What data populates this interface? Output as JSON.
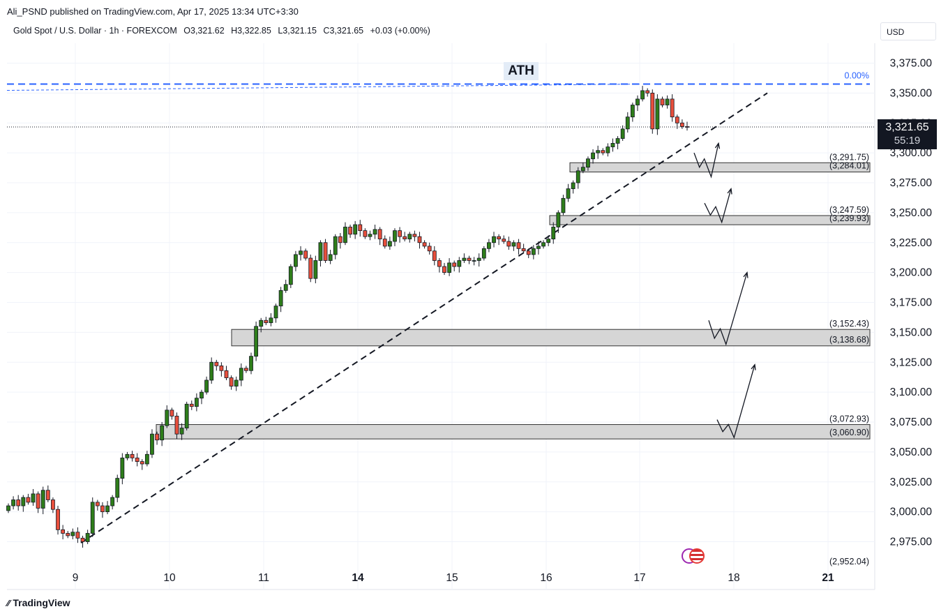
{
  "publisher": "Ali_PSND published on TradingView.com, Apr 17, 2025 13:34 UTC+3:30",
  "symbol": {
    "name": "Gold Spot / U.S. Dollar · 1h · FOREXCOM",
    "open": "O3,321.62",
    "high": "H3,322.85",
    "low": "L3,321.15",
    "close": "C3,321.65",
    "change": "+0.03 (+0.00%)"
  },
  "currency": "USD",
  "footer_brand": "TradingView",
  "last_price": "3,321.65",
  "countdown": "55:19",
  "colors": {
    "up": "#2e7d1a",
    "down": "#e84f3c",
    "up_fill": "#b7d6a0",
    "down_fill": "#f2a99b",
    "ath_line": "#2962ff",
    "zone": "#d6d6d6"
  },
  "chart_data": {
    "type": "candlestick",
    "instrument": "XAU/USD",
    "timeframe": "1h",
    "ylim": [
      2952.04,
      3375
    ],
    "y_ticks": [
      "3,375.00",
      "3,350.00",
      "3,325.00",
      "3,300.00",
      "3,275.00",
      "3,250.00",
      "3,225.00",
      "3,200.00",
      "3,175.00",
      "3,150.00",
      "3,125.00",
      "3,100.00",
      "3,075.00",
      "3,050.00",
      "3,025.00",
      "3,000.00",
      "2,975.00"
    ],
    "y_tick_values": [
      3375,
      3350,
      3325,
      3300,
      3275,
      3250,
      3225,
      3200,
      3175,
      3150,
      3125,
      3100,
      3075,
      3050,
      3025,
      3000,
      2975
    ],
    "x_ticks": [
      {
        "label": "9",
        "bold": false
      },
      {
        "label": "10",
        "bold": false
      },
      {
        "label": "11",
        "bold": false
      },
      {
        "label": "14",
        "bold": true
      },
      {
        "label": "15",
        "bold": false
      },
      {
        "label": "16",
        "bold": false
      },
      {
        "label": "17",
        "bold": false
      },
      {
        "label": "18",
        "bold": false
      },
      {
        "label": "21",
        "bold": true
      }
    ],
    "ath_label": "ATH",
    "ath_level": 3357.5,
    "fib_label": "0.00%",
    "last_price_value": 3321.65,
    "bottom_label": "(2,952.04)",
    "zones": [
      {
        "top": 3291.75,
        "bottom": 3284.01,
        "top_label": "(3,291.75)",
        "bottom_label": "(3,284.01)"
      },
      {
        "top": 3247.59,
        "bottom": 3239.93,
        "top_label": "(3,247.59)",
        "bottom_label": "(3,239.93)"
      },
      {
        "top": 3152.43,
        "bottom": 3138.68,
        "top_label": "(3,152.43)",
        "bottom_label": "(3,138.68)"
      },
      {
        "top": 3072.93,
        "bottom": 3060.9,
        "top_label": "(3,072.93)",
        "bottom_label": "(3,060.90)"
      }
    ],
    "trendline": [
      [
        2974,
        0.0
      ],
      [
        3350,
        1.0
      ]
    ],
    "candles_close": [
      3005,
      3010,
      3005,
      3012,
      3008,
      3015,
      3003,
      3018,
      3010,
      3002,
      2985,
      2982,
      2980,
      2983,
      2978,
      2975,
      2982,
      3008,
      3005,
      3000,
      3005,
      3012,
      3028,
      3045,
      3048,
      3045,
      3042,
      3040,
      3048,
      3065,
      3060,
      3072,
      3085,
      3080,
      3065,
      3070,
      3090,
      3088,
      3095,
      3100,
      3110,
      3125,
      3122,
      3118,
      3112,
      3105,
      3110,
      3120,
      3118,
      3130,
      3155,
      3160,
      3158,
      3162,
      3172,
      3185,
      3190,
      3205,
      3215,
      3218,
      3212,
      3195,
      3210,
      3225,
      3210,
      3215,
      3230,
      3225,
      3238,
      3232,
      3240,
      3235,
      3230,
      3232,
      3236,
      3228,
      3222,
      3226,
      3235,
      3230,
      3228,
      3232,
      3230,
      3225,
      3222,
      3218,
      3210,
      3205,
      3200,
      3208,
      3205,
      3210,
      3212,
      3210,
      3210,
      3212,
      3220,
      3225,
      3230,
      3228,
      3226,
      3222,
      3225,
      3220,
      3218,
      3215,
      3220,
      3222,
      3225,
      3228,
      3238,
      3250,
      3262,
      3270,
      3275,
      3285,
      3288,
      3295,
      3300,
      3302,
      3300,
      3305,
      3308,
      3312,
      3320,
      3330,
      3340,
      3345,
      3352,
      3350,
      3320,
      3345,
      3340,
      3345,
      3330,
      3325,
      3322,
      3321.65
    ],
    "down_candle_indices": [
      2,
      4,
      6,
      8,
      9,
      10,
      11,
      12,
      14,
      15,
      19,
      25,
      26,
      27,
      33,
      34,
      41,
      42,
      43,
      44,
      45,
      47,
      52,
      60,
      61,
      64,
      67,
      69,
      71,
      72,
      75,
      76,
      79,
      80,
      82,
      83,
      84,
      85,
      86,
      87,
      88,
      90,
      93,
      101,
      102,
      103,
      104,
      105,
      120,
      130,
      132,
      134,
      135,
      136,
      137
    ],
    "arrows": [
      {
        "points": [
          [
            3300,
            0
          ],
          [
            3288,
            0.22
          ],
          [
            3295,
            0.42
          ],
          [
            3280,
            0.7
          ],
          [
            3308,
            1
          ]
        ]
      },
      {
        "points": [
          [
            3258,
            0
          ],
          [
            3248,
            0.22
          ],
          [
            3255,
            0.42
          ],
          [
            3242,
            0.65
          ],
          [
            3270,
            1
          ]
        ]
      },
      {
        "points": [
          [
            3160,
            0
          ],
          [
            3145,
            0.15
          ],
          [
            3153,
            0.3
          ],
          [
            3140,
            0.45
          ],
          [
            3200,
            1
          ]
        ]
      },
      {
        "points": [
          [
            3077,
            0
          ],
          [
            3067,
            0.15
          ],
          [
            3073,
            0.3
          ],
          [
            3062,
            0.45
          ],
          [
            3123,
            1
          ]
        ]
      }
    ]
  }
}
